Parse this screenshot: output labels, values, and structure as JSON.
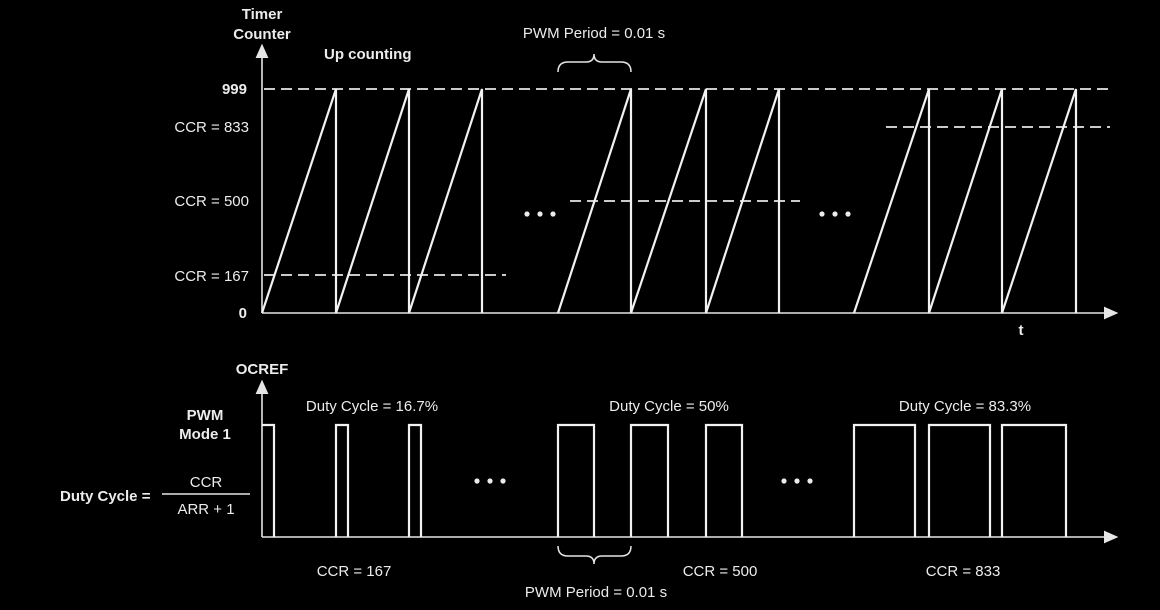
{
  "top_axis": {
    "y_title_line1": "Timer",
    "y_title_line2": "Counter",
    "x_label": "t",
    "mode_label": "Up counting",
    "ticks": {
      "max": "999",
      "ccr_833": "CCR = 833",
      "ccr_500": "CCR = 500",
      "ccr_167": "CCR = 167",
      "zero": "0"
    },
    "period_label": "PWM Period = 0.01 s"
  },
  "bottom_axis": {
    "y_title": "OCREF",
    "mode_line1": "PWM",
    "mode_line2": "Mode 1",
    "formula": {
      "lhs": "Duty Cycle =",
      "numerator": "CCR",
      "denominator": "ARR + 1"
    },
    "period_label": "PWM Period = 0.01 s"
  },
  "groups": [
    {
      "duty_label": "Duty Cycle = 16.7%",
      "ccr_label": "CCR = 167",
      "ccr": 167,
      "duty": 0.167
    },
    {
      "duty_label": "Duty Cycle = 50%",
      "ccr_label": "CCR = 500",
      "ccr": 500,
      "duty": 0.5
    },
    {
      "duty_label": "Duty Cycle = 83.3%",
      "ccr_label": "CCR = 833",
      "ccr": 833,
      "duty": 0.833
    }
  ],
  "arr": 999,
  "ellipsis": "• • •"
}
